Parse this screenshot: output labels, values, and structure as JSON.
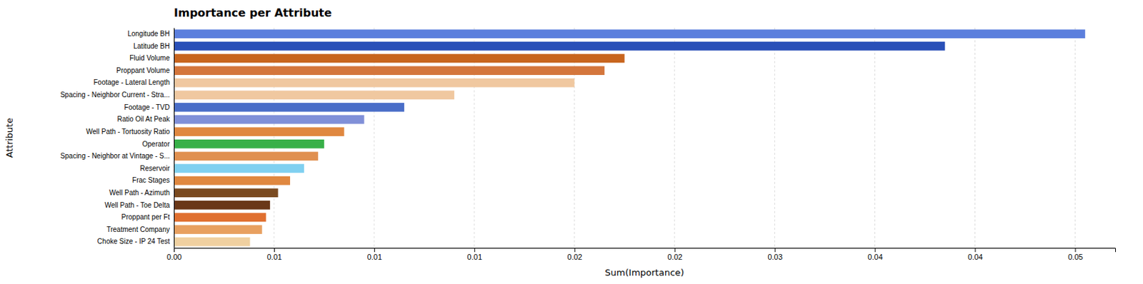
{
  "chart_data": {
    "type": "bar",
    "orientation": "horizontal",
    "title": "Importance per Attribute",
    "xlabel": "Sum(Importance)",
    "ylabel": "Attribute",
    "categories": [
      "Choke Size - IP 24 Test",
      "Treatment Company",
      "Proppant per Ft",
      "Well Path - Toe Delta",
      "Well Path - Azimuth",
      "Frac Stages",
      "Reservoir",
      "Spacing - Neighbor at Vintage - S...",
      "Operator",
      "Well Path - Tortuosity Ratio",
      "Ratio Oil At Peak",
      "Footage - TVD",
      "Spacing - Neighbor Current - Stra...",
      "Footage - Lateral Length",
      "Proppant Volume",
      "Fluid Volume",
      "Latitude BH",
      "Longitude BH"
    ],
    "values": [
      0.0038,
      0.0044,
      0.0046,
      0.0048,
      0.0052,
      0.0058,
      0.0065,
      0.0072,
      0.0075,
      0.0085,
      0.0095,
      0.0115,
      0.014,
      0.02,
      0.0215,
      0.0225,
      0.0385,
      0.0455
    ],
    "colors": [
      "#f0d0a0",
      "#e8a060",
      "#e07030",
      "#6a3818",
      "#7a4a20",
      "#e08840",
      "#80d0f0",
      "#e09050",
      "#38b048",
      "#e08840",
      "#8090d8",
      "#4a6ec8",
      "#f0c8a0",
      "#f0c8a0",
      "#d4763c",
      "#c8651e",
      "#2a50b8",
      "#5b7fdd"
    ],
    "xlim": [
      0,
      0.047
    ],
    "xticks": [
      {
        "value": 0,
        "label": "0.00"
      },
      {
        "value": 0.005,
        "label": "0.01"
      },
      0.01,
      {
        "value": 0.015,
        "label": "0.01"
      },
      0.02,
      {
        "value": 0.025,
        "label": "0.02"
      },
      0.03,
      {
        "value": 0.035,
        "label": "0.04"
      },
      0.04,
      {
        "value": 0.045,
        "label": "0.05"
      }
    ],
    "grid": true
  }
}
